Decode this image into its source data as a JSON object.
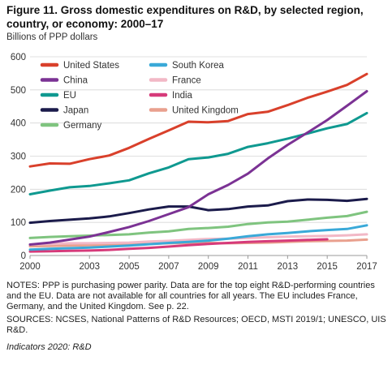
{
  "figure": {
    "title": "Figure 11. Gross domestic expenditures on R&D, by selected region, country, or economy: 2000–17",
    "unit": "Billions of PPP dollars",
    "notes": "NOTES: PPP is purchasing power parity. Data are for the top eight R&D-performing countries and the EU. Data are not available for all countries for all years. The EU includes France, Germany, and the United Kingdom. See p. 22.",
    "sources": "SOURCES: NCSES, National Patterns of R&D Resources; OECD, MSTI 2019/1; UNESCO, UIS R&D.",
    "credit": "Indicators 2020: R&D"
  },
  "chart_data": {
    "type": "line",
    "title": "Figure 11. Gross domestic expenditures on R&D, by selected region, country, or economy: 2000–17",
    "ylabel": "Billions of PPP dollars",
    "xlabel": "",
    "xlim": [
      2000,
      2017
    ],
    "ylim": [
      0,
      600
    ],
    "x_ticks": [
      2000,
      2003,
      2005,
      2007,
      2009,
      2011,
      2013,
      2015,
      2017
    ],
    "y_ticks": [
      0,
      100,
      200,
      300,
      400,
      500,
      600
    ],
    "grid": "horizontal",
    "legend_position": "top-left",
    "series": [
      {
        "name": "United States",
        "color": "#d9402b",
        "x": [
          2000,
          2001,
          2002,
          2003,
          2004,
          2005,
          2006,
          2007,
          2008,
          2009,
          2010,
          2011,
          2012,
          2013,
          2014,
          2015,
          2016,
          2017
        ],
        "values": [
          269,
          278,
          277,
          291,
          302,
          325,
          352,
          378,
          404,
          402,
          406,
          427,
          434,
          454,
          476,
          495,
          515,
          548
        ]
      },
      {
        "name": "China",
        "color": "#7b3294",
        "x": [
          2000,
          2001,
          2002,
          2003,
          2004,
          2005,
          2006,
          2007,
          2008,
          2009,
          2010,
          2011,
          2012,
          2013,
          2014,
          2015,
          2016,
          2017
        ],
        "values": [
          33,
          39,
          48,
          57,
          71,
          86,
          104,
          125,
          146,
          185,
          213,
          247,
          293,
          334,
          371,
          409,
          452,
          496
        ]
      },
      {
        "name": "EU",
        "color": "#0f9990",
        "x": [
          2000,
          2001,
          2002,
          2003,
          2004,
          2005,
          2006,
          2007,
          2008,
          2009,
          2010,
          2011,
          2012,
          2013,
          2014,
          2015,
          2016,
          2017
        ],
        "values": [
          185,
          196,
          206,
          210,
          218,
          227,
          248,
          266,
          291,
          296,
          307,
          328,
          339,
          353,
          368,
          384,
          397,
          430
        ]
      },
      {
        "name": "Japan",
        "color": "#1b1b4b",
        "x": [
          2000,
          2001,
          2002,
          2003,
          2004,
          2005,
          2006,
          2007,
          2008,
          2009,
          2010,
          2011,
          2012,
          2013,
          2014,
          2015,
          2016,
          2017
        ],
        "values": [
          99,
          104,
          108,
          112,
          118,
          128,
          139,
          148,
          148,
          137,
          140,
          148,
          151,
          164,
          169,
          168,
          165,
          171
        ]
      },
      {
        "name": "Germany",
        "color": "#7fc47f",
        "x": [
          2000,
          2001,
          2002,
          2003,
          2004,
          2005,
          2006,
          2007,
          2008,
          2009,
          2010,
          2011,
          2012,
          2013,
          2014,
          2015,
          2016,
          2017
        ],
        "values": [
          53,
          56,
          58,
          60,
          62,
          64,
          69,
          73,
          80,
          83,
          87,
          95,
          100,
          102,
          108,
          114,
          119,
          132
        ]
      },
      {
        "name": "South Korea",
        "color": "#3aa9d8",
        "x": [
          2000,
          2001,
          2002,
          2003,
          2004,
          2005,
          2006,
          2007,
          2008,
          2009,
          2010,
          2011,
          2012,
          2013,
          2014,
          2015,
          2016,
          2017
        ],
        "values": [
          18,
          20,
          22,
          24,
          27,
          30,
          34,
          38,
          41,
          45,
          51,
          58,
          64,
          68,
          73,
          77,
          80,
          91
        ]
      },
      {
        "name": "France",
        "color": "#f2b8c6",
        "x": [
          2000,
          2001,
          2002,
          2003,
          2004,
          2005,
          2006,
          2007,
          2008,
          2009,
          2010,
          2011,
          2012,
          2013,
          2014,
          2015,
          2016,
          2017
        ],
        "values": [
          33,
          35,
          37,
          37,
          38,
          39,
          42,
          44,
          47,
          50,
          51,
          53,
          55,
          57,
          58,
          59,
          61,
          64
        ]
      },
      {
        "name": "India",
        "color": "#d63a7a",
        "x": [
          2000,
          2001,
          2002,
          2003,
          2004,
          2005,
          2006,
          2007,
          2008,
          2009,
          2010,
          2011,
          2012,
          2013,
          2014,
          2015,
          2016,
          2017
        ],
        "values": [
          12,
          13,
          14,
          15,
          17,
          20,
          23,
          27,
          31,
          35,
          38,
          41,
          43,
          45,
          47,
          49,
          null,
          null
        ]
      },
      {
        "name": "United Kingdom",
        "color": "#e9a08e",
        "x": [
          2000,
          2001,
          2002,
          2003,
          2004,
          2005,
          2006,
          2007,
          2008,
          2009,
          2010,
          2011,
          2012,
          2013,
          2014,
          2015,
          2016,
          2017
        ],
        "values": [
          28,
          29,
          30,
          31,
          32,
          33,
          35,
          37,
          38,
          38,
          37,
          38,
          39,
          41,
          43,
          44,
          45,
          48
        ]
      }
    ]
  }
}
